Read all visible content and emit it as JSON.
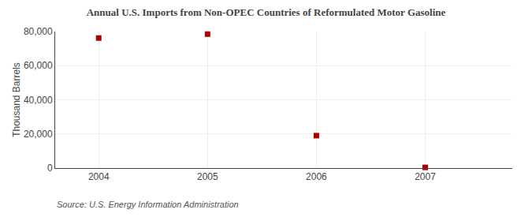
{
  "chart_data": {
    "type": "scatter",
    "title": "Annual U.S. Imports from Non-OPEC Countries of Reformulated Motor Gasoline",
    "ylabel": "Thousand Barrels",
    "annotations": [
      "Source: U.S. Energy Information Administration"
    ],
    "x": [
      2004,
      2005,
      2006,
      2007
    ],
    "values": [
      76200,
      78500,
      19000,
      400
    ],
    "color": "#aa0000",
    "marker": "square",
    "xlim": [
      2003.6,
      2007.8
    ],
    "ylim": [
      0,
      80000
    ],
    "xticks": [
      2004,
      2005,
      2006,
      2007
    ],
    "yticks": [
      0,
      {
        "value": 20000,
        "label": "20,000"
      },
      {
        "value": 40000,
        "label": "40,000"
      },
      {
        "value": 60000,
        "label": "60,000"
      },
      {
        "value": 80000,
        "label": "80,000"
      }
    ],
    "grid": true
  }
}
